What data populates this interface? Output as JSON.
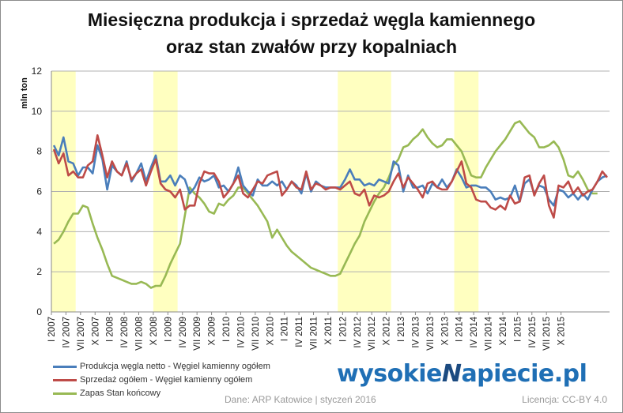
{
  "title_line1": "Miesięczna produkcja i sprzedaż węgla kamiennego",
  "title_line2": "oraz stan zwałów przy kopalniach",
  "brand": {
    "part1": "wysokie",
    "part2": "apiecie.pl"
  },
  "source": "Dane: ARP Katowice | styczeń 2016",
  "license": "Licencja: CC-BY 4.0",
  "chart_data": {
    "type": "line",
    "title": "Miesięczna produkcja i sprzedaż węgla kamiennego oraz stan zwałów przy kopalniach",
    "ylabel": "mln ton",
    "xlabel": "",
    "ylim": [
      0,
      12
    ],
    "yticks": [
      0,
      2,
      4,
      6,
      8,
      10,
      12
    ],
    "grid": true,
    "legend_position": "bottom-left",
    "x_tick_labels": [
      "I 2007",
      "IV 2007",
      "VII 2007",
      "X 2007",
      "I 2008",
      "IV 2008",
      "VII 2008",
      "X 2008",
      "I 2009",
      "IV 2009",
      "VII 2009",
      "X 2009",
      "I 2010",
      "IV 2010",
      "VII 2010",
      "X 2010",
      "I 2011",
      "IV 2011",
      "VII 2011",
      "X 2011",
      "I 2012",
      "IV 2012",
      "VII 2012",
      "X 2012",
      "I 2013",
      "IV 2013",
      "VII 2013",
      "X 2013",
      "I 2014",
      "IV 2014",
      "VII 2014",
      "X 2014",
      "I 2015",
      "IV 2015",
      "VII 2015",
      "X 2015"
    ],
    "highlight_periods": [
      {
        "from": "I 2007",
        "to": "V 2007"
      },
      {
        "from": "X 2008",
        "to": "II 2009"
      },
      {
        "from": "XII 2011",
        "to": "X 2012"
      },
      {
        "from": "XII 2013",
        "to": "IV 2014"
      }
    ],
    "colors": {
      "series0": "#4a7ebb",
      "series1": "#be4b48",
      "series2": "#98b954",
      "highlight": "#ffffc0",
      "grid": "#b0b0b0"
    },
    "series": [
      {
        "name": "Produkcja węgla netto - Węgiel kamienny ogółem",
        "values": [
          8.3,
          7.8,
          8.7,
          7.5,
          7.4,
          6.8,
          7.2,
          7.2,
          6.9,
          8.3,
          7.6,
          6.1,
          7.3,
          7.0,
          6.8,
          7.5,
          6.5,
          6.9,
          7.4,
          6.5,
          7.2,
          7.8,
          6.5,
          6.5,
          6.8,
          6.3,
          6.8,
          6.6,
          5.9,
          6.2,
          6.7,
          6.5,
          6.6,
          6.8,
          6.2,
          6.3,
          6.0,
          6.4,
          7.2,
          6.3,
          6.0,
          5.8,
          6.6,
          6.3,
          6.3,
          6.5,
          6.3,
          6.5,
          6.1,
          6.5,
          6.3,
          5.9,
          6.9,
          6.0,
          6.5,
          6.3,
          6.2,
          6.2,
          6.2,
          6.2,
          6.6,
          7.1,
          6.6,
          6.6,
          6.3,
          6.4,
          6.3,
          6.6,
          6.5,
          6.4,
          7.5,
          7.3,
          6.0,
          6.8,
          6.2,
          6.2,
          6.3,
          5.9,
          6.4,
          6.2,
          6.6,
          6.2,
          6.5,
          7.1,
          6.7,
          6.2,
          6.3,
          6.3,
          6.2,
          6.2,
          6.0,
          5.6,
          5.7,
          5.6,
          5.7,
          6.3,
          5.5,
          6.4,
          6.6,
          5.9,
          6.3,
          6.2,
          5.6,
          5.3,
          6.1,
          6.0,
          5.7,
          5.9,
          5.6,
          5.9,
          5.6,
          6.1,
          6.5,
          6.7,
          6.8
        ]
      },
      {
        "name": "Sprzedaż ogółem - Węgiel kamienny ogółem",
        "values": [
          8.1,
          7.4,
          7.9,
          6.8,
          7.0,
          6.7,
          6.7,
          7.3,
          7.5,
          8.8,
          7.8,
          6.7,
          7.5,
          7.0,
          6.8,
          7.4,
          6.6,
          6.9,
          7.1,
          6.3,
          7.0,
          7.6,
          6.4,
          6.1,
          6.0,
          5.7,
          6.1,
          5.1,
          5.3,
          5.3,
          6.4,
          7.0,
          6.9,
          6.9,
          6.5,
          5.7,
          6.0,
          6.4,
          6.8,
          5.9,
          5.7,
          6.1,
          6.5,
          6.4,
          6.8,
          6.9,
          7.0,
          5.8,
          6.1,
          6.5,
          6.2,
          6.1,
          7.0,
          6.1,
          6.4,
          6.3,
          6.1,
          6.2,
          6.2,
          6.1,
          6.3,
          6.5,
          5.9,
          5.8,
          6.1,
          5.3,
          5.8,
          5.7,
          5.8,
          6.0,
          6.5,
          6.9,
          6.2,
          6.7,
          6.4,
          6.1,
          5.7,
          6.4,
          6.5,
          6.2,
          6.1,
          6.1,
          6.5,
          7.0,
          7.5,
          6.4,
          6.2,
          5.6,
          5.5,
          5.5,
          5.2,
          5.1,
          5.3,
          5.1,
          5.8,
          5.4,
          5.5,
          6.7,
          6.8,
          5.8,
          6.4,
          6.8,
          5.3,
          4.7,
          6.3,
          6.2,
          6.5,
          5.9,
          6.2,
          5.8,
          6.0,
          6.1,
          6.5,
          7.0,
          6.7
        ]
      },
      {
        "name": "Zapas Stan końcowy",
        "values": [
          3.4,
          3.6,
          4.0,
          4.5,
          4.9,
          4.9,
          5.3,
          5.2,
          4.4,
          3.7,
          3.1,
          2.4,
          1.8,
          1.7,
          1.6,
          1.5,
          1.4,
          1.4,
          1.5,
          1.4,
          1.2,
          1.3,
          1.3,
          1.8,
          2.4,
          2.9,
          3.4,
          4.8,
          6.2,
          5.9,
          5.7,
          5.4,
          5.0,
          4.9,
          5.4,
          5.3,
          5.6,
          5.8,
          6.2,
          6.2,
          5.9,
          5.6,
          5.3,
          4.9,
          4.5,
          3.7,
          4.1,
          3.7,
          3.3,
          3.0,
          2.8,
          2.6,
          2.4,
          2.2,
          2.1,
          2.0,
          1.9,
          1.8,
          1.8,
          1.9,
          2.4,
          2.9,
          3.4,
          3.8,
          4.5,
          5.0,
          5.5,
          5.9,
          6.2,
          6.7,
          7.3,
          7.6,
          8.2,
          8.3,
          8.6,
          8.8,
          9.1,
          8.7,
          8.4,
          8.2,
          8.3,
          8.6,
          8.6,
          8.3,
          8.0,
          7.4,
          6.8,
          6.7,
          6.7,
          7.2,
          7.6,
          8.0,
          8.3,
          8.6,
          9.0,
          9.4,
          9.5,
          9.2,
          8.9,
          8.7,
          8.2,
          8.2,
          8.3,
          8.5,
          8.2,
          7.6,
          6.8,
          6.7,
          7.0,
          6.6,
          6.1,
          5.9,
          5.9
        ]
      }
    ]
  }
}
